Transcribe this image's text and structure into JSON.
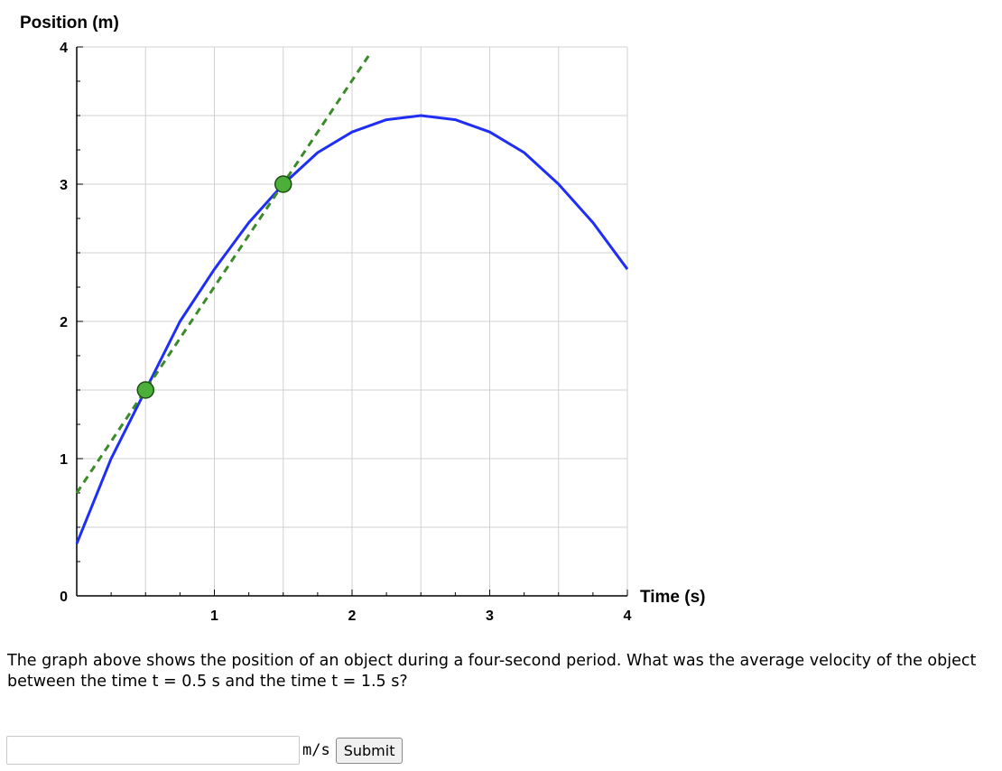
{
  "chart_data": {
    "type": "line",
    "ylabel": "Position (m)",
    "xlabel": "Time (s)",
    "xlim": [
      0,
      4
    ],
    "ylim": [
      0,
      4
    ],
    "x_ticks": [
      1,
      2,
      3,
      4
    ],
    "y_ticks": [
      0,
      1,
      2,
      3,
      4
    ],
    "x_minor_step": 0.5,
    "y_minor_step": 0.5,
    "grid": true,
    "series": [
      {
        "kind": "curve",
        "color": "#1f2ef5",
        "x": [
          0,
          0.25,
          0.5,
          0.75,
          1,
          1.25,
          1.5,
          1.75,
          2,
          2.25,
          2.5,
          2.75,
          3,
          3.25,
          3.5,
          3.75,
          4
        ],
        "y": [
          0.38,
          1.0,
          1.5,
          2.0,
          2.38,
          2.72,
          3.0,
          3.23,
          3.38,
          3.47,
          3.5,
          3.47,
          3.38,
          3.23,
          3.0,
          2.72,
          2.38
        ]
      },
      {
        "kind": "secant",
        "style": "dashed",
        "color": "#3a8a2a",
        "x": [
          0,
          2.13
        ],
        "y": [
          0.75,
          3.95
        ]
      }
    ],
    "points": [
      {
        "x": 0.5,
        "y": 1.5,
        "color": "#4caf3a"
      },
      {
        "x": 1.5,
        "y": 3.0,
        "color": "#4caf3a"
      }
    ]
  },
  "question": {
    "text": "The graph above shows the position of an object during a four-second period. What was the average velocity of the object between the time t = 0.5 s and the time t = 1.5 s?"
  },
  "answer": {
    "value": "",
    "unit": "m/s",
    "submit_label": "Submit"
  }
}
